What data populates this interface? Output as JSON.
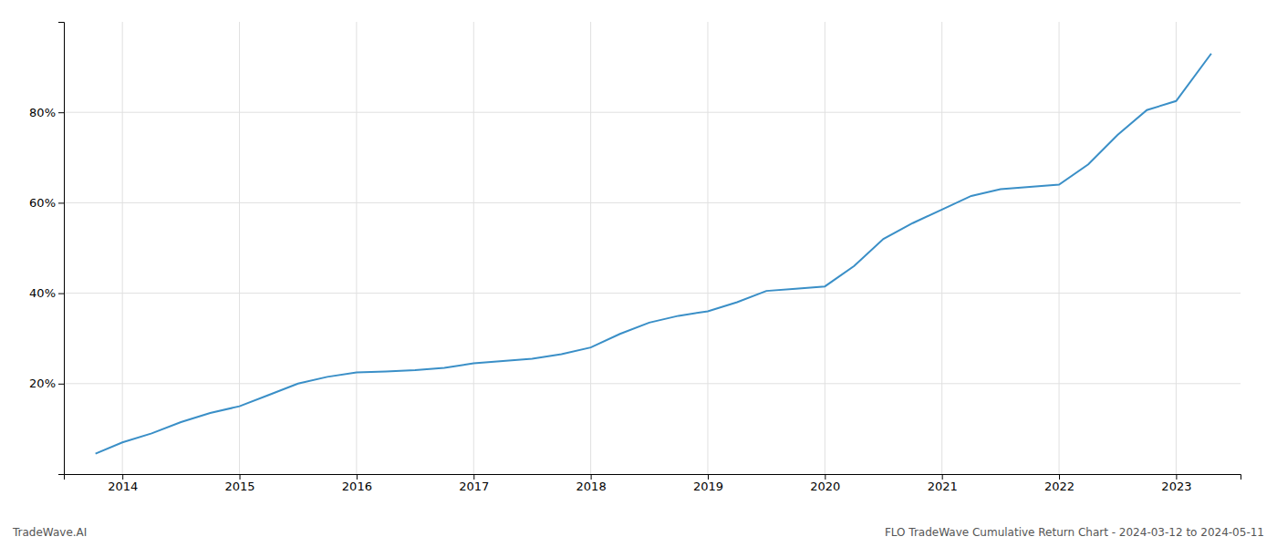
{
  "chart_data": {
    "type": "line",
    "annotations": [
      "TradeWave.AI",
      "FLO TradeWave Cumulative Return Chart - 2024-03-12 to 2024-05-11"
    ],
    "color": "#3a8fc7",
    "x": [
      2013.77,
      2014.0,
      2014.25,
      2014.5,
      2014.75,
      2015.0,
      2015.25,
      2015.5,
      2015.75,
      2016.0,
      2016.25,
      2016.5,
      2016.75,
      2017.0,
      2017.25,
      2017.5,
      2017.75,
      2018.0,
      2018.25,
      2018.5,
      2018.75,
      2019.0,
      2019.25,
      2019.5,
      2019.75,
      2020.0,
      2020.25,
      2020.5,
      2020.75,
      2021.0,
      2021.25,
      2021.5,
      2021.75,
      2022.0,
      2022.25,
      2022.5,
      2022.75,
      2023.0,
      2023.3
    ],
    "values": [
      4.5,
      7.0,
      9.0,
      11.5,
      13.5,
      15.0,
      17.5,
      20.0,
      21.5,
      22.5,
      22.7,
      23.0,
      23.5,
      24.5,
      25.0,
      25.5,
      26.5,
      28.0,
      31.0,
      33.5,
      35.0,
      36.0,
      38.0,
      40.5,
      41.0,
      41.5,
      46.0,
      52.0,
      55.5,
      58.5,
      61.5,
      63.0,
      63.5,
      64.0,
      68.5,
      75.0,
      80.5,
      82.5,
      93.0
    ],
    "xlim": [
      2013.5,
      2023.55
    ],
    "ylim": [
      0,
      100
    ],
    "xticks": [
      2014,
      2015,
      2016,
      2017,
      2018,
      2019,
      2020,
      2021,
      2022,
      2023
    ],
    "yticks": [
      {
        "value": 20,
        "label": "20%"
      },
      {
        "value": 40,
        "label": "40%"
      },
      {
        "value": 60,
        "label": "60%"
      },
      {
        "value": 80,
        "label": "80%"
      }
    ],
    "grid": true
  }
}
